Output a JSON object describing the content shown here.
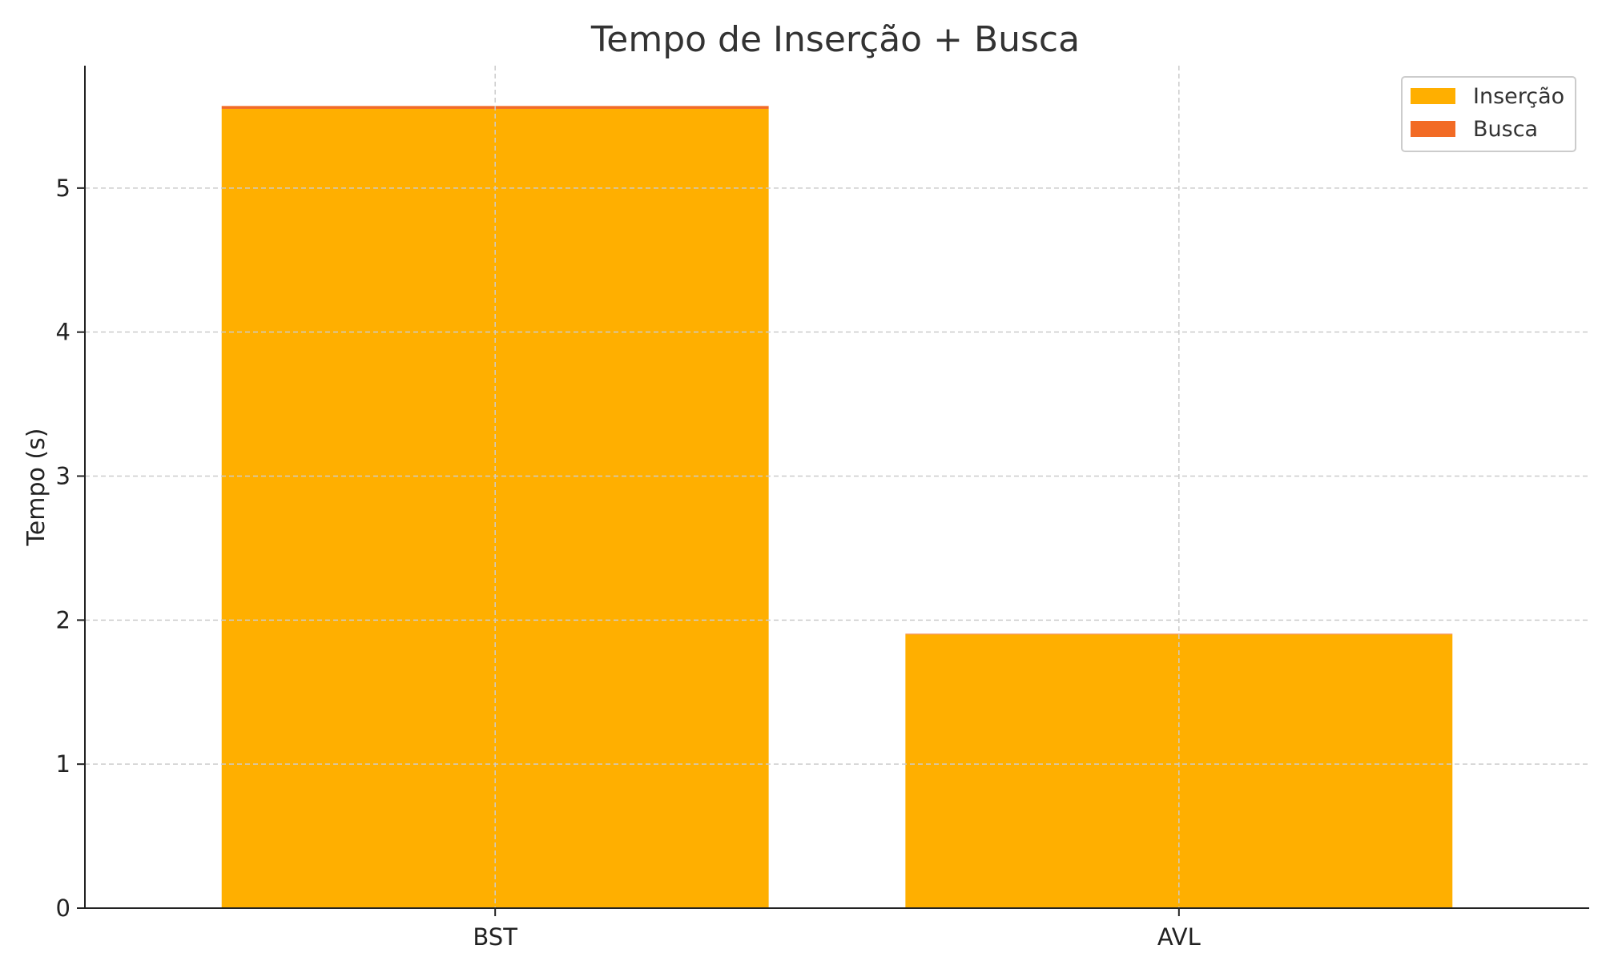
{
  "chart_data": {
    "type": "bar",
    "stacked": true,
    "title": "Tempo de Inserção + Busca",
    "xlabel": "",
    "ylabel": "Tempo (s)",
    "categories": [
      "BST",
      "AVL"
    ],
    "series": [
      {
        "name": "Inserção",
        "color": "#FFAF00",
        "values": [
          5.55,
          1.9
        ]
      },
      {
        "name": "Busca",
        "color": "#F26B25",
        "values": [
          0.02,
          0.005
        ]
      }
    ],
    "ylim": [
      0,
      5.85
    ],
    "yticks": [
      0,
      1,
      2,
      3,
      4,
      5
    ],
    "grid": true,
    "legend_position": "top-right"
  }
}
